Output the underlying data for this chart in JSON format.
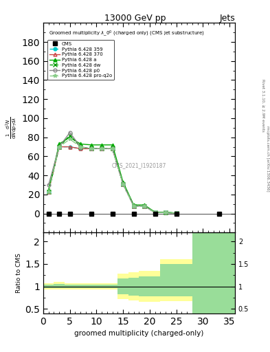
{
  "title": "13000 GeV pp",
  "title_right": "Jets",
  "xlabel": "groomed multiplicity (charged-only)",
  "right_label1": "Rivet 3.1.10, ≥ 2.9M events",
  "right_label2": "mcplots.cern.ch [arXiv:1306.3436]",
  "cms_label": "CMS_2021_I1920187",
  "ylim_main": [
    -20,
    200
  ],
  "ylim_ratio": [
    0.4,
    2.2
  ],
  "yticks_main": [
    0,
    20,
    40,
    60,
    80,
    100,
    120,
    140,
    160,
    180
  ],
  "yticks_ratio": [
    0.5,
    1.0,
    1.5,
    2.0
  ],
  "cms_x": [
    1,
    3,
    5,
    9,
    13,
    17,
    21,
    25,
    33
  ],
  "cms_y": [
    0,
    0,
    0,
    0,
    0,
    0,
    0,
    0,
    0
  ],
  "lines": [
    {
      "label": "Pythia 6.428 359",
      "color": "#00CCCC",
      "linestyle": "--",
      "marker": "o",
      "markersize": 3.5,
      "x": [
        1,
        3,
        5,
        7,
        9,
        11,
        13,
        15,
        17,
        19,
        21,
        23,
        25
      ],
      "y": [
        23,
        70,
        70,
        68,
        68,
        68,
        68,
        31,
        8,
        8,
        1,
        1,
        0.5
      ]
    },
    {
      "label": "Pythia 6.428 370",
      "color": "#CC4444",
      "linestyle": "-",
      "marker": "^",
      "markersize": 3.5,
      "markerfacecolor": "none",
      "x": [
        1,
        3,
        5,
        7,
        9,
        11,
        13,
        15,
        17,
        19,
        21,
        23,
        25
      ],
      "y": [
        23,
        70,
        70,
        68,
        68,
        68,
        68,
        31,
        8,
        8,
        1,
        1,
        0.5
      ]
    },
    {
      "label": "Pythia 6.428 a",
      "color": "#00AA00",
      "linestyle": "-",
      "marker": "^",
      "markersize": 3.5,
      "markerfacecolor": "#00AA00",
      "x": [
        1,
        3,
        5,
        7,
        9,
        11,
        13,
        15,
        17,
        19,
        21,
        23,
        25
      ],
      "y": [
        25,
        73,
        80,
        73,
        72,
        72,
        72,
        33,
        9,
        9,
        1.5,
        1.5,
        0.5
      ]
    },
    {
      "label": "Pythia 6.428 dw",
      "color": "#009900",
      "linestyle": "--",
      "marker": "x",
      "markersize": 4,
      "x": [
        1,
        3,
        5,
        7,
        9,
        11,
        13,
        15,
        17,
        19,
        21,
        23,
        25
      ],
      "y": [
        23,
        70,
        82,
        70,
        68,
        68,
        68,
        31,
        8,
        8,
        1,
        1,
        0.5
      ]
    },
    {
      "label": "Pythia 6.428 p0",
      "color": "#888888",
      "linestyle": "-",
      "marker": "o",
      "markersize": 3.5,
      "markerfacecolor": "none",
      "x": [
        1,
        3,
        5,
        7,
        9,
        11,
        13,
        15,
        17,
        19,
        21,
        23,
        25
      ],
      "y": [
        30,
        70,
        85,
        70,
        68,
        68,
        68,
        31,
        8,
        8,
        1,
        1,
        0.5
      ]
    },
    {
      "label": "Pythia 6.428 pro-q2o",
      "color": "#88CC88",
      "linestyle": "-.",
      "marker": "*",
      "markersize": 4,
      "x": [
        1,
        3,
        5,
        7,
        9,
        11,
        13,
        15,
        17,
        19,
        21,
        23,
        25
      ],
      "y": [
        23,
        70,
        78,
        70,
        68,
        68,
        68,
        31,
        8,
        8,
        1,
        1,
        0.5
      ]
    }
  ],
  "ratio_yellow": {
    "x_edges": [
      0,
      2,
      4,
      6,
      8,
      10,
      12,
      14,
      16,
      18,
      20,
      22,
      24,
      26,
      28,
      37
    ],
    "y_low": [
      0.93,
      0.93,
      0.93,
      0.93,
      0.93,
      0.93,
      0.93,
      0.72,
      0.68,
      0.65,
      0.65,
      0.67,
      0.67,
      0.67,
      0.4,
      0.4
    ],
    "y_high": [
      1.07,
      1.1,
      1.07,
      1.07,
      1.07,
      1.07,
      1.07,
      1.28,
      1.32,
      1.35,
      1.35,
      1.6,
      1.6,
      1.6,
      2.2,
      2.2
    ],
    "color": "#FFFF99"
  },
  "ratio_green": {
    "x_edges": [
      0,
      2,
      4,
      6,
      8,
      10,
      12,
      14,
      16,
      18,
      20,
      22,
      24,
      26,
      28,
      37
    ],
    "y_low": [
      0.96,
      0.96,
      0.96,
      0.96,
      0.96,
      0.96,
      0.96,
      0.82,
      0.8,
      0.78,
      0.78,
      0.78,
      0.78,
      0.78,
      0.4,
      0.4
    ],
    "y_high": [
      1.04,
      1.06,
      1.04,
      1.04,
      1.04,
      1.04,
      1.04,
      1.18,
      1.2,
      1.22,
      1.22,
      1.5,
      1.5,
      1.5,
      2.2,
      2.2
    ],
    "color": "#99DD99"
  }
}
